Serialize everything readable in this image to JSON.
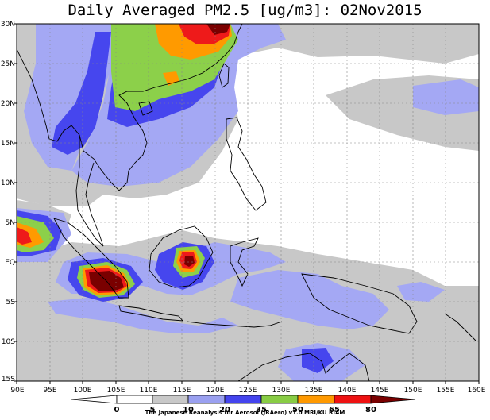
{
  "title": "Daily Averaged PM2.5 [ug/m3]: 02Nov2015",
  "credit": "The Japanese Reanalysis for Aerosol (JRAero) v1.0 MRI/KU RIAM",
  "lon_labels": [
    "90E",
    "95E",
    "100E",
    "105E",
    "110E",
    "115E",
    "120E",
    "125E",
    "130E",
    "135E",
    "140E",
    "145E",
    "150E",
    "155E",
    "160E"
  ],
  "lat_labels": [
    "30N",
    "25N",
    "20N",
    "15N",
    "10N",
    "5N",
    "EQ",
    "5S",
    "10S",
    "15S"
  ],
  "colorbar": {
    "levels": [
      "0",
      "5",
      "10",
      "20",
      "35",
      "50",
      "65",
      "80"
    ],
    "colors": [
      "#ffffff",
      "#ffffff",
      "#c8c8c8",
      "#9aa0f0",
      "#4444ee",
      "#88cc44",
      "#ff9900",
      "#ee1111",
      "#7a0000"
    ]
  },
  "colors": {
    "c10": "#c8c8c8",
    "c20": "#a4a8f4",
    "c35": "#4646ee",
    "c50": "#8cd04a",
    "c65": "#ff9a00",
    "c80": "#ee1a1a",
    "cmax": "#7a0000"
  }
}
